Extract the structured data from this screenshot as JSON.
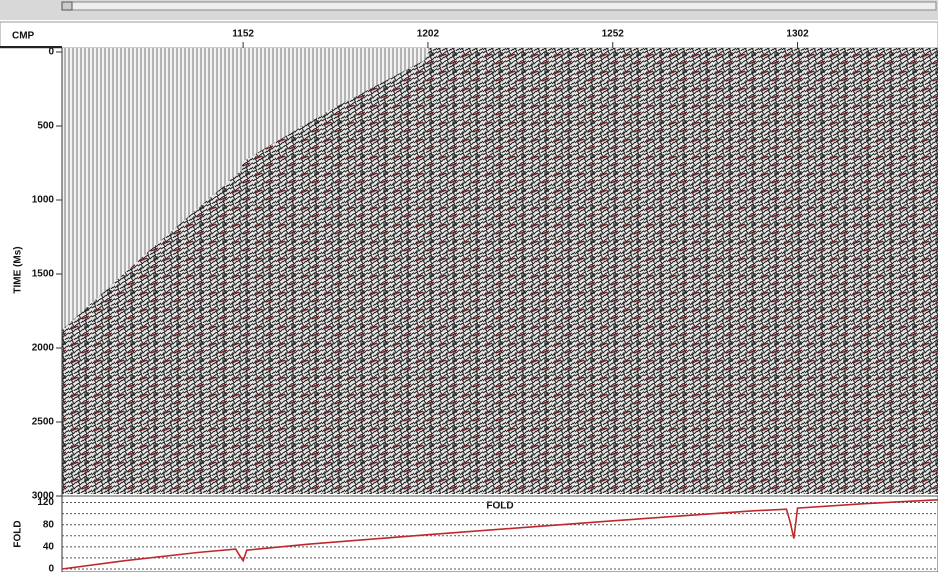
{
  "chart_data": [
    {
      "type": "seismic",
      "x_label": "CMP",
      "y_label": "TIME (Ms)",
      "xlim": [
        1103,
        1340
      ],
      "xticks": [
        1152,
        1202,
        1252,
        1302
      ],
      "ylim": [
        0,
        3000
      ],
      "yticks": [
        0,
        500,
        1000,
        1500,
        2000,
        2500,
        3000
      ]
    },
    {
      "type": "line",
      "title": "FOLD",
      "y_label": "FOLD",
      "xlim": [
        1103,
        1340
      ],
      "ylim": [
        0,
        130
      ],
      "yticks": [
        0,
        40,
        80,
        120
      ],
      "minor_yticks": [
        20,
        60,
        100
      ],
      "grid": true,
      "series": [
        {
          "name": "FOLD",
          "color": "#c0282d",
          "x": [
            1103,
            1120,
            1140,
            1150,
            1151,
            1152,
            1153,
            1170,
            1202,
            1252,
            1290,
            1299,
            1300,
            1301,
            1302,
            1320,
            1340
          ],
          "values": [
            0,
            15,
            30,
            36,
            25,
            15,
            34,
            45,
            62,
            87,
            105,
            108,
            85,
            55,
            110,
            118,
            125
          ]
        }
      ]
    }
  ]
}
